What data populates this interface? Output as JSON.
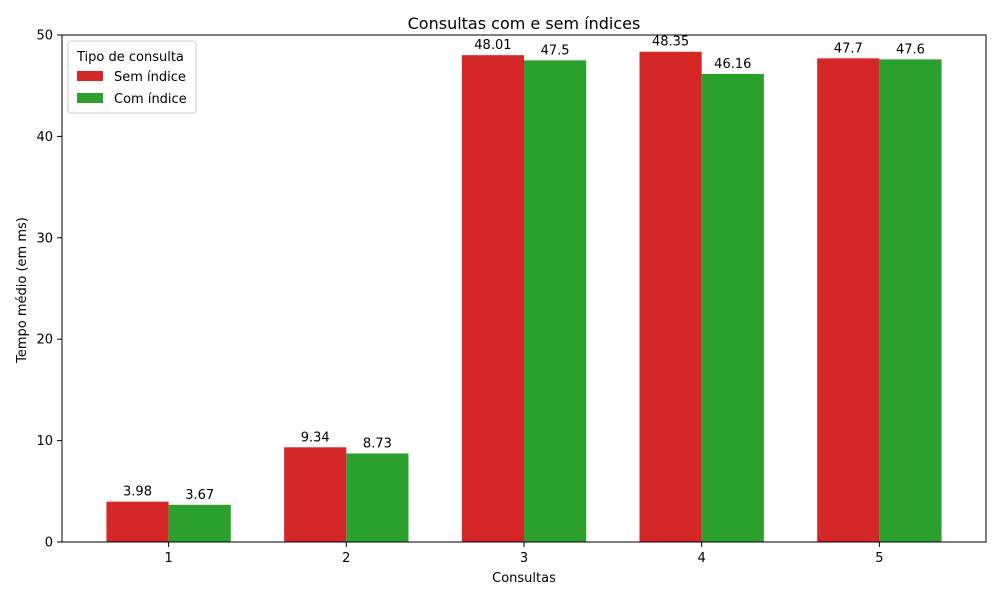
{
  "chart_data": {
    "type": "bar",
    "title": "Consultas com e sem índices",
    "xlabel": "Consultas",
    "ylabel": "Tempo médio (em ms)",
    "categories": [
      "1",
      "2",
      "3",
      "4",
      "5"
    ],
    "series": [
      {
        "name": "Sem índice",
        "color": "#d62728",
        "values": [
          3.98,
          9.34,
          48.01,
          48.35,
          47.7
        ]
      },
      {
        "name": "Com índice",
        "color": "#2ca02c",
        "values": [
          3.67,
          8.73,
          47.5,
          46.16,
          47.6
        ]
      }
    ],
    "ylim": [
      0,
      50
    ],
    "yticks": [
      0,
      10,
      20,
      30,
      40,
      50
    ],
    "legend": {
      "title": "Tipo de consulta",
      "position": "top-left"
    },
    "grid": false
  }
}
